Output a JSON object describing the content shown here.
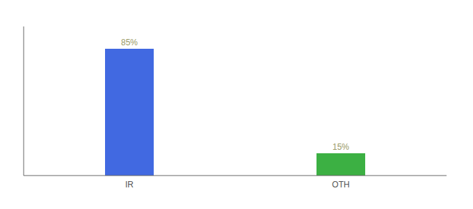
{
  "chart_data": {
    "type": "bar",
    "categories": [
      "IR",
      "OTH"
    ],
    "values": [
      85,
      15
    ],
    "value_labels": [
      "85%",
      "15%"
    ],
    "colors": [
      "#4169e1",
      "#3cb043"
    ],
    "ylim": [
      0,
      100
    ],
    "data_labels": true,
    "tick_labels": "x",
    "grid": false
  }
}
